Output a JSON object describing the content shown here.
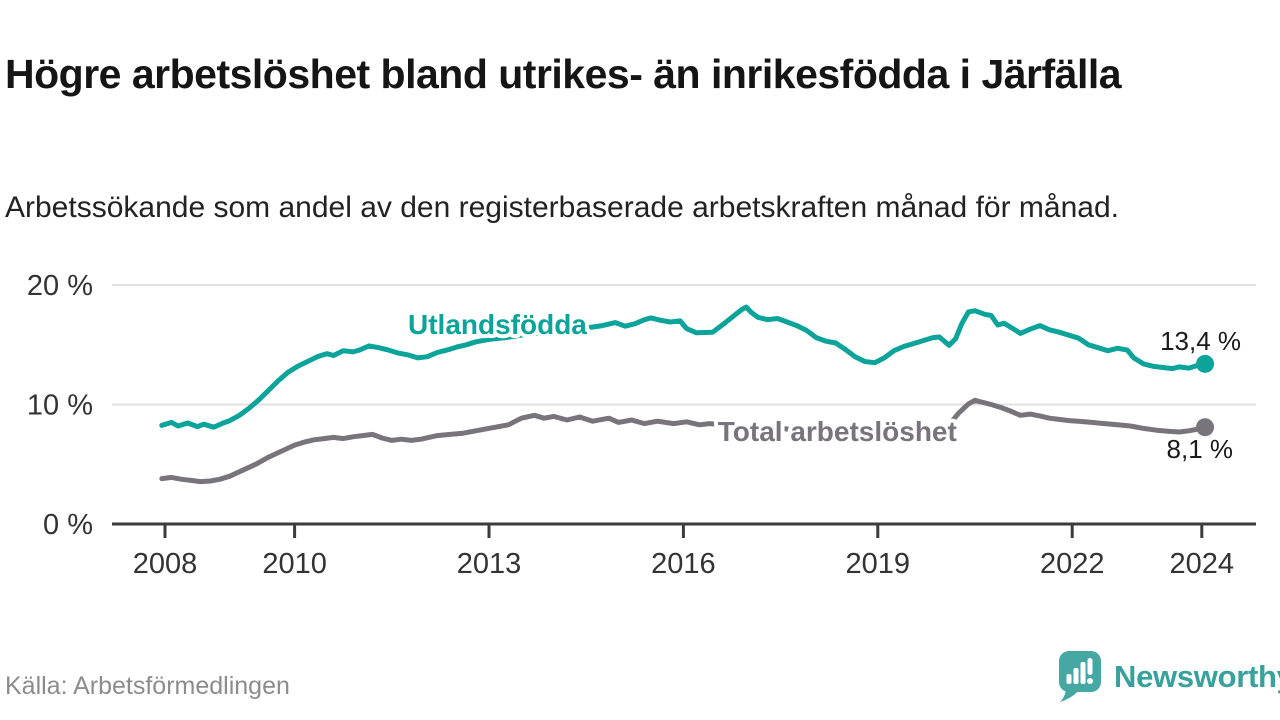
{
  "header": {
    "title": "Högre arbetslöshet bland utrikes- än inrikesfödda i Järfälla",
    "subtitle": "Arbetssökande som andel av den registerbaserade arbetskraften månad för månad."
  },
  "footer": {
    "source": "Källa: Arbetsförmedlingen",
    "brand": "Newsworthy"
  },
  "colors": {
    "foreign_born_line": "#0ba39a",
    "total_line": "#77747c",
    "gridline": "#e1e1e1",
    "axis": "#3b3b3b",
    "tick_text": "#333333",
    "end_label_text": "#1a1a1a",
    "logo_teal": "#45a8a3",
    "background": "#ffffff"
  },
  "chart_data": {
    "type": "line",
    "title": "Högre arbetslöshet bland utrikes- än inrikesfödda i Järfälla",
    "subtitle": "Arbetssökande som andel av den registerbaserade arbetskraften månad för månad.",
    "xlabel": "",
    "ylabel": "",
    "xlim": [
      2007.2,
      2024.85
    ],
    "ylim": [
      0,
      21.5
    ],
    "grid": "horizontal",
    "legend_position": "inline-labels",
    "x_ticks": [
      2008,
      2010,
      2013,
      2016,
      2019,
      2022,
      2024
    ],
    "x_tick_labels": [
      "2008",
      "2010",
      "2013",
      "2016",
      "2019",
      "2022",
      "2024"
    ],
    "y_ticks": [
      0,
      10,
      20
    ],
    "y_tick_labels": [
      "0 %",
      "10 %",
      "20 %"
    ],
    "series": [
      {
        "name": "Utlandsfödda",
        "color": "#0ba39a",
        "end_value": 13.4,
        "end_label": "13,4 %",
        "label_pos": {
          "year": 2011.75,
          "pct": 15.9,
          "anchor": "start"
        },
        "end_label_offset": [
          36,
          -14
        ],
        "points": [
          [
            2007.95,
            8.25
          ],
          [
            2008.1,
            8.5
          ],
          [
            2008.2,
            8.2
          ],
          [
            2008.35,
            8.45
          ],
          [
            2008.5,
            8.15
          ],
          [
            2008.6,
            8.35
          ],
          [
            2008.75,
            8.1
          ],
          [
            2008.9,
            8.45
          ],
          [
            2009.0,
            8.65
          ],
          [
            2009.15,
            9.1
          ],
          [
            2009.3,
            9.7
          ],
          [
            2009.45,
            10.4
          ],
          [
            2009.6,
            11.2
          ],
          [
            2009.75,
            12.0
          ],
          [
            2009.9,
            12.7
          ],
          [
            2010.05,
            13.2
          ],
          [
            2010.2,
            13.6
          ],
          [
            2010.35,
            14.0
          ],
          [
            2010.5,
            14.25
          ],
          [
            2010.6,
            14.1
          ],
          [
            2010.75,
            14.5
          ],
          [
            2010.9,
            14.4
          ],
          [
            2011.0,
            14.55
          ],
          [
            2011.15,
            14.9
          ],
          [
            2011.3,
            14.75
          ],
          [
            2011.45,
            14.55
          ],
          [
            2011.6,
            14.3
          ],
          [
            2011.75,
            14.15
          ],
          [
            2011.9,
            13.9
          ],
          [
            2012.05,
            14.0
          ],
          [
            2012.2,
            14.35
          ],
          [
            2012.35,
            14.55
          ],
          [
            2012.5,
            14.8
          ],
          [
            2012.65,
            15.0
          ],
          [
            2012.8,
            15.25
          ],
          [
            2013.0,
            15.45
          ],
          [
            2013.25,
            15.6
          ],
          [
            2013.5,
            15.8
          ],
          [
            2013.75,
            15.95
          ],
          [
            2014.0,
            16.1
          ],
          [
            2014.25,
            16.25
          ],
          [
            2014.5,
            16.4
          ],
          [
            2014.75,
            16.6
          ],
          [
            2014.95,
            16.85
          ],
          [
            2015.1,
            16.55
          ],
          [
            2015.25,
            16.75
          ],
          [
            2015.4,
            17.1
          ],
          [
            2015.5,
            17.25
          ],
          [
            2015.65,
            17.05
          ],
          [
            2015.8,
            16.9
          ],
          [
            2015.95,
            17.0
          ],
          [
            2016.05,
            16.35
          ],
          [
            2016.2,
            16.0
          ],
          [
            2016.45,
            16.05
          ],
          [
            2016.6,
            16.65
          ],
          [
            2016.75,
            17.3
          ],
          [
            2016.9,
            17.95
          ],
          [
            2016.97,
            18.15
          ],
          [
            2017.05,
            17.7
          ],
          [
            2017.15,
            17.3
          ],
          [
            2017.3,
            17.1
          ],
          [
            2017.45,
            17.2
          ],
          [
            2017.6,
            16.9
          ],
          [
            2017.75,
            16.6
          ],
          [
            2017.9,
            16.2
          ],
          [
            2018.05,
            15.6
          ],
          [
            2018.2,
            15.3
          ],
          [
            2018.35,
            15.15
          ],
          [
            2018.5,
            14.6
          ],
          [
            2018.65,
            14.0
          ],
          [
            2018.8,
            13.6
          ],
          [
            2018.95,
            13.5
          ],
          [
            2019.1,
            13.9
          ],
          [
            2019.25,
            14.5
          ],
          [
            2019.4,
            14.85
          ],
          [
            2019.55,
            15.1
          ],
          [
            2019.7,
            15.35
          ],
          [
            2019.85,
            15.6
          ],
          [
            2019.95,
            15.65
          ],
          [
            2020.1,
            14.95
          ],
          [
            2020.2,
            15.5
          ],
          [
            2020.3,
            16.8
          ],
          [
            2020.4,
            17.75
          ],
          [
            2020.5,
            17.85
          ],
          [
            2020.65,
            17.55
          ],
          [
            2020.75,
            17.45
          ],
          [
            2020.85,
            16.65
          ],
          [
            2020.95,
            16.8
          ],
          [
            2021.1,
            16.3
          ],
          [
            2021.2,
            15.95
          ],
          [
            2021.35,
            16.3
          ],
          [
            2021.5,
            16.6
          ],
          [
            2021.65,
            16.25
          ],
          [
            2021.8,
            16.05
          ],
          [
            2021.95,
            15.8
          ],
          [
            2022.1,
            15.55
          ],
          [
            2022.25,
            15.0
          ],
          [
            2022.4,
            14.75
          ],
          [
            2022.55,
            14.5
          ],
          [
            2022.7,
            14.7
          ],
          [
            2022.85,
            14.55
          ],
          [
            2022.95,
            13.9
          ],
          [
            2023.1,
            13.4
          ],
          [
            2023.25,
            13.2
          ],
          [
            2023.4,
            13.1
          ],
          [
            2023.55,
            13.0
          ],
          [
            2023.65,
            13.15
          ],
          [
            2023.8,
            13.05
          ],
          [
            2023.95,
            13.3
          ],
          [
            2024.05,
            13.4
          ]
        ]
      },
      {
        "name": "Total arbetslöshet",
        "color": "#77747c",
        "end_value": 8.1,
        "end_label": "8,1 %",
        "label_pos": {
          "year": 2016.53,
          "pct": 6.95,
          "anchor": "start"
        },
        "end_label_offset": [
          28,
          31
        ],
        "points": [
          [
            2007.95,
            3.8
          ],
          [
            2008.1,
            3.9
          ],
          [
            2008.25,
            3.75
          ],
          [
            2008.4,
            3.65
          ],
          [
            2008.55,
            3.55
          ],
          [
            2008.7,
            3.6
          ],
          [
            2008.85,
            3.75
          ],
          [
            2009.0,
            4.0
          ],
          [
            2009.2,
            4.5
          ],
          [
            2009.4,
            5.0
          ],
          [
            2009.6,
            5.6
          ],
          [
            2009.8,
            6.1
          ],
          [
            2010.0,
            6.6
          ],
          [
            2010.15,
            6.85
          ],
          [
            2010.3,
            7.05
          ],
          [
            2010.45,
            7.15
          ],
          [
            2010.6,
            7.25
          ],
          [
            2010.75,
            7.15
          ],
          [
            2010.9,
            7.3
          ],
          [
            2011.05,
            7.4
          ],
          [
            2011.2,
            7.5
          ],
          [
            2011.35,
            7.2
          ],
          [
            2011.5,
            7.0
          ],
          [
            2011.65,
            7.1
          ],
          [
            2011.8,
            7.0
          ],
          [
            2011.95,
            7.1
          ],
          [
            2012.2,
            7.4
          ],
          [
            2012.4,
            7.5
          ],
          [
            2012.6,
            7.6
          ],
          [
            2012.9,
            7.9
          ],
          [
            2013.1,
            8.1
          ],
          [
            2013.3,
            8.3
          ],
          [
            2013.5,
            8.85
          ],
          [
            2013.7,
            9.1
          ],
          [
            2013.85,
            8.85
          ],
          [
            2014.0,
            9.0
          ],
          [
            2014.2,
            8.7
          ],
          [
            2014.4,
            8.95
          ],
          [
            2014.6,
            8.6
          ],
          [
            2014.85,
            8.85
          ],
          [
            2015.0,
            8.5
          ],
          [
            2015.2,
            8.7
          ],
          [
            2015.4,
            8.4
          ],
          [
            2015.6,
            8.6
          ],
          [
            2015.85,
            8.4
          ],
          [
            2016.05,
            8.55
          ],
          [
            2016.25,
            8.3
          ],
          [
            2016.4,
            8.4
          ],
          [
            2016.6,
            8.3
          ],
          [
            2016.85,
            8.25
          ],
          [
            2017.1,
            8.15
          ],
          [
            2017.35,
            8.05
          ],
          [
            2017.6,
            7.95
          ],
          [
            2017.85,
            7.9
          ],
          [
            2018.1,
            7.8
          ],
          [
            2018.35,
            7.75
          ],
          [
            2018.6,
            7.65
          ],
          [
            2018.85,
            7.6
          ],
          [
            2019.1,
            7.55
          ],
          [
            2019.35,
            7.5
          ],
          [
            2019.6,
            7.55
          ],
          [
            2019.8,
            7.65
          ],
          [
            2019.95,
            7.8
          ],
          [
            2020.1,
            8.3
          ],
          [
            2020.25,
            9.3
          ],
          [
            2020.4,
            10.05
          ],
          [
            2020.5,
            10.35
          ],
          [
            2020.6,
            10.2
          ],
          [
            2020.75,
            10.0
          ],
          [
            2020.9,
            9.75
          ],
          [
            2021.05,
            9.45
          ],
          [
            2021.2,
            9.1
          ],
          [
            2021.35,
            9.2
          ],
          [
            2021.5,
            9.05
          ],
          [
            2021.65,
            8.85
          ],
          [
            2021.8,
            8.75
          ],
          [
            2021.95,
            8.65
          ],
          [
            2022.1,
            8.6
          ],
          [
            2022.3,
            8.5
          ],
          [
            2022.5,
            8.4
          ],
          [
            2022.7,
            8.3
          ],
          [
            2022.9,
            8.2
          ],
          [
            2023.1,
            8.0
          ],
          [
            2023.3,
            7.85
          ],
          [
            2023.5,
            7.75
          ],
          [
            2023.65,
            7.7
          ],
          [
            2023.8,
            7.8
          ],
          [
            2023.95,
            7.95
          ],
          [
            2024.05,
            8.1
          ]
        ]
      }
    ]
  }
}
